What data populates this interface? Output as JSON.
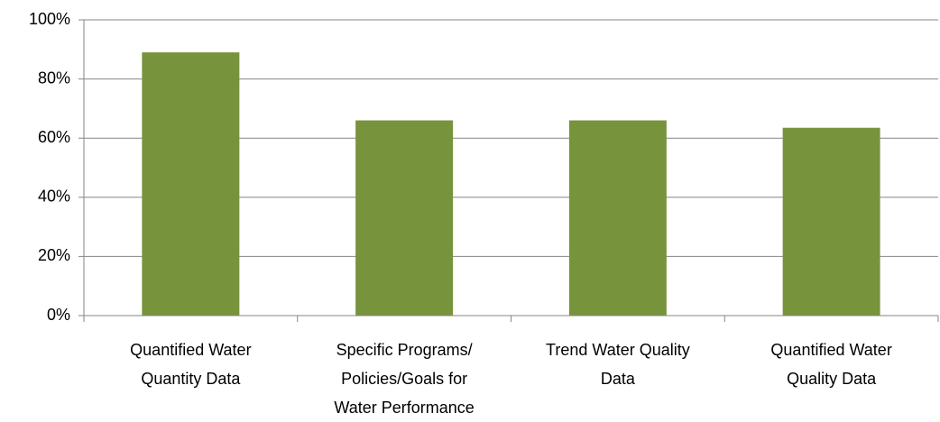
{
  "chart_data": {
    "type": "bar",
    "categories": [
      [
        "Quantified Water",
        "Quantity  Data"
      ],
      [
        "Specific Programs/",
        "Policies/Goals for",
        "Water Performance"
      ],
      [
        "Trend Water Quality",
        "Data"
      ],
      [
        "Quantified Water",
        "Quality Data"
      ]
    ],
    "values": [
      89,
      66,
      66,
      63.5
    ],
    "color": "#77933c",
    "ylim": [
      0,
      100
    ],
    "yticks": [
      {
        "value": 0,
        "label": "0%"
      },
      {
        "value": 20,
        "label": "20%"
      },
      {
        "value": 40,
        "label": "40%"
      },
      {
        "value": 60,
        "label": "60%"
      },
      {
        "value": 80,
        "label": "80%"
      },
      {
        "value": 100,
        "label": "100%"
      }
    ],
    "grid": true
  }
}
